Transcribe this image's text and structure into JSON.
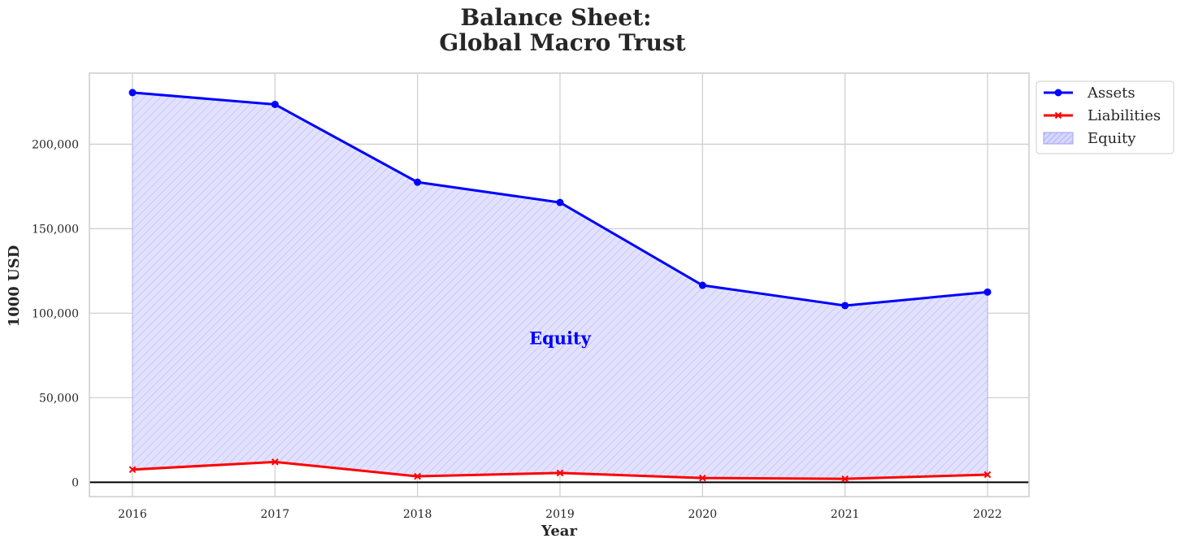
{
  "chart_data": {
    "type": "line",
    "title_line1": "Balance Sheet:",
    "title_line2": "Global Macro Trust",
    "xlabel": "Year",
    "ylabel": "1000 USD",
    "categories": [
      "2016",
      "2017",
      "2018",
      "2019",
      "2020",
      "2021",
      "2022"
    ],
    "yticks": [
      0,
      50000,
      100000,
      150000,
      200000
    ],
    "ytick_labels": [
      "0",
      "50,000",
      "100,000",
      "150,000",
      "200,000"
    ],
    "ylim": [
      -8500,
      242000
    ],
    "series": [
      {
        "name": "Assets",
        "values": [
          230500,
          223500,
          177500,
          165500,
          116500,
          104500,
          112500
        ],
        "color": "#0000ff",
        "marker": "circle"
      },
      {
        "name": "Liabilities",
        "values": [
          7500,
          12000,
          3500,
          5500,
          2500,
          2000,
          4500
        ],
        "color": "#ff0000",
        "marker": "x"
      }
    ],
    "fill": {
      "name": "Equity",
      "between": [
        "Liabilities",
        "Assets"
      ],
      "color": "#0000ff",
      "hatch": "////"
    },
    "legend": [
      "Assets",
      "Liabilities",
      "Equity"
    ],
    "legend_position": "outside-top-right",
    "annotation": {
      "text": "Equity",
      "x": "2019",
      "y": 85000,
      "color": "#0000ff"
    },
    "grid": true
  }
}
